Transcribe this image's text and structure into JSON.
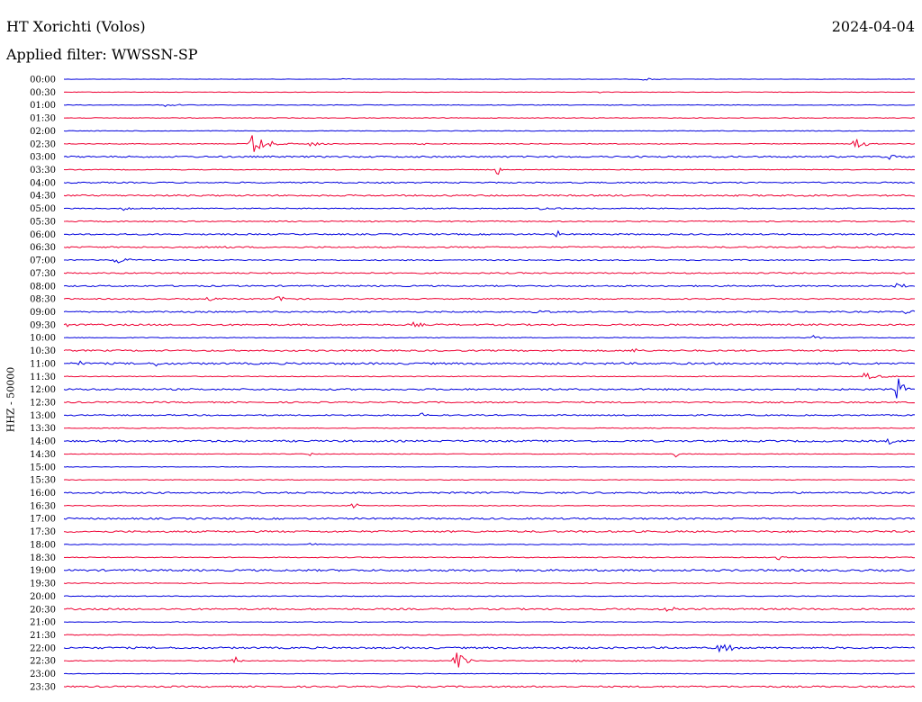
{
  "header": {
    "station": "HT Xorichti (Volos)",
    "date": "2024-04-04",
    "filter": "Applied filter: WWSSN-SP"
  },
  "colors": {
    "odd_trace": "#0000dd",
    "even_trace": "#ee0033",
    "text": "#000000"
  },
  "chart_data": {
    "type": "line",
    "title": "HT Xorichti (Volos)",
    "subtitle": "Applied filter: WWSSN-SP",
    "date": "2024-04-04",
    "ylabel": "HHZ - 50000",
    "row_labels": [
      "00:00",
      "00:30",
      "01:00",
      "01:30",
      "02:00",
      "02:30",
      "03:00",
      "03:30",
      "04:00",
      "04:30",
      "05:00",
      "05:30",
      "06:00",
      "06:30",
      "07:00",
      "07:30",
      "08:00",
      "08:30",
      "09:00",
      "09:30",
      "10:00",
      "10:30",
      "11:00",
      "11:30",
      "12:00",
      "12:30",
      "13:00",
      "13:30",
      "14:00",
      "14:30",
      "15:00",
      "15:30",
      "16:00",
      "16:30",
      "17:00",
      "17:30",
      "18:00",
      "18:30",
      "19:00",
      "19:30",
      "20:00",
      "20:30",
      "21:00",
      "21:30",
      "22:00",
      "22:30",
      "23:00",
      "23:30"
    ],
    "row_noise": [
      0.3,
      0.4,
      0.5,
      0.5,
      0.5,
      0.6,
      1.2,
      0.6,
      1.0,
      1.2,
      0.8,
      0.9,
      1.1,
      1.1,
      0.9,
      1.0,
      1.1,
      0.9,
      1.1,
      1.3,
      0.6,
      1.2,
      1.5,
      0.6,
      1.3,
      1.1,
      1.0,
      0.6,
      1.4,
      0.5,
      0.4,
      0.5,
      1.3,
      0.6,
      1.3,
      1.4,
      0.6,
      0.7,
      1.5,
      0.6,
      0.6,
      1.3,
      0.5,
      0.6,
      1.4,
      0.6,
      0.5,
      1.2
    ],
    "events": [
      {
        "row": 0,
        "x": 0.33,
        "amp": 2,
        "dur": 0.01
      },
      {
        "row": 0,
        "x": 0.68,
        "amp": 2,
        "dur": 0.03
      },
      {
        "row": 1,
        "x": 0.63,
        "amp": 2,
        "dur": 0.01
      },
      {
        "row": 2,
        "x": 0.12,
        "amp": 3,
        "dur": 0.03
      },
      {
        "row": 5,
        "x": 0.22,
        "amp": 12,
        "dur": 0.05
      },
      {
        "row": 5,
        "x": 0.29,
        "amp": 3,
        "dur": 0.03
      },
      {
        "row": 5,
        "x": 0.42,
        "amp": 3,
        "dur": 0.02
      },
      {
        "row": 5,
        "x": 0.93,
        "amp": 8,
        "dur": 0.03
      },
      {
        "row": 6,
        "x": 0.97,
        "amp": 4,
        "dur": 0.03
      },
      {
        "row": 7,
        "x": 0.51,
        "amp": 7,
        "dur": 0.006
      },
      {
        "row": 10,
        "x": 0.07,
        "amp": 3,
        "dur": 0.015
      },
      {
        "row": 10,
        "x": 0.56,
        "amp": 3,
        "dur": 0.03
      },
      {
        "row": 12,
        "x": 0.58,
        "amp": 5,
        "dur": 0.005
      },
      {
        "row": 13,
        "x": 0.19,
        "amp": 4,
        "dur": 0.006
      },
      {
        "row": 14,
        "x": 0.06,
        "amp": 4,
        "dur": 0.05
      },
      {
        "row": 16,
        "x": 0.98,
        "amp": 5,
        "dur": 0.02
      },
      {
        "row": 17,
        "x": 0.17,
        "amp": 3,
        "dur": 0.02
      },
      {
        "row": 17,
        "x": 0.25,
        "amp": 3,
        "dur": 0.04
      },
      {
        "row": 18,
        "x": 0.55,
        "amp": 4,
        "dur": 0.05
      },
      {
        "row": 18,
        "x": 0.99,
        "amp": 4,
        "dur": 0.015
      },
      {
        "row": 19,
        "x": 0.0,
        "amp": 5,
        "dur": 0.012
      },
      {
        "row": 19,
        "x": 0.41,
        "amp": 3,
        "dur": 0.025
      },
      {
        "row": 20,
        "x": 0.88,
        "amp": 3,
        "dur": 0.03
      },
      {
        "row": 21,
        "x": 0.67,
        "amp": 5,
        "dur": 0.01
      },
      {
        "row": 22,
        "x": 0.02,
        "amp": 5,
        "dur": 0.006
      },
      {
        "row": 22,
        "x": 0.11,
        "amp": 5,
        "dur": 0.006
      },
      {
        "row": 23,
        "x": 0.94,
        "amp": 4,
        "dur": 0.05
      },
      {
        "row": 24,
        "x": 0.98,
        "amp": 14,
        "dur": 0.02
      },
      {
        "row": 24,
        "x": 0.08,
        "amp": 3,
        "dur": 0.01
      },
      {
        "row": 26,
        "x": 0.42,
        "amp": 4,
        "dur": 0.01
      },
      {
        "row": 28,
        "x": 0.97,
        "amp": 3,
        "dur": 0.02
      },
      {
        "row": 29,
        "x": 0.29,
        "amp": 3,
        "dur": 0.005
      },
      {
        "row": 29,
        "x": 0.72,
        "amp": 5,
        "dur": 0.005
      },
      {
        "row": 33,
        "x": 0.34,
        "amp": 4,
        "dur": 0.015
      },
      {
        "row": 36,
        "x": 0.29,
        "amp": 3,
        "dur": 0.015
      },
      {
        "row": 37,
        "x": 0.84,
        "amp": 3,
        "dur": 0.015
      },
      {
        "row": 41,
        "x": 0.71,
        "amp": 5,
        "dur": 0.02
      },
      {
        "row": 44,
        "x": 0.77,
        "amp": 6,
        "dur": 0.04
      },
      {
        "row": 45,
        "x": 0.2,
        "amp": 8,
        "dur": 0.012
      },
      {
        "row": 45,
        "x": 0.46,
        "amp": 16,
        "dur": 0.025
      },
      {
        "row": 45,
        "x": 0.6,
        "amp": 4,
        "dur": 0.02
      }
    ]
  }
}
